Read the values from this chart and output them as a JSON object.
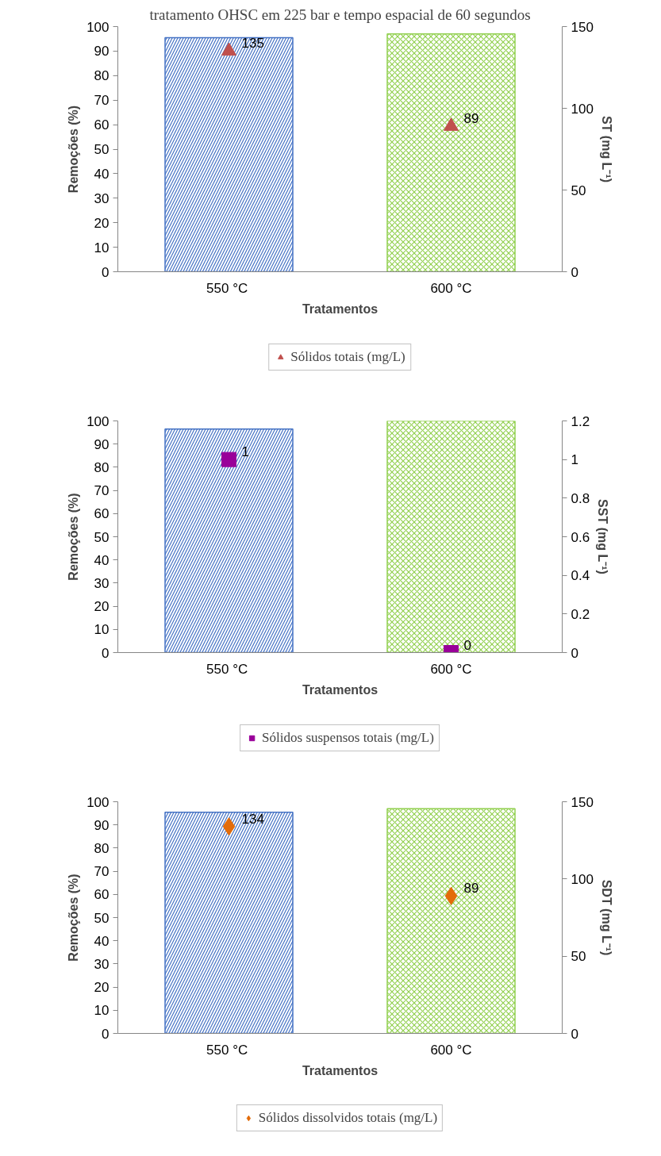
{
  "chart_data": [
    {
      "type": "bar",
      "title": "tratamento OHSC em 225 bar e tempo espacial de 60 segundos",
      "categories": [
        "550  °C",
        "600 °C"
      ],
      "xlabel": "Tratamentos",
      "ylabel": "Remoções (%)",
      "y2label": "ST (mg L⁻¹)",
      "ylim": [
        0,
        100
      ],
      "yticks": [
        0,
        10,
        20,
        30,
        40,
        50,
        60,
        70,
        80,
        90,
        100
      ],
      "y2lim": [
        0,
        150
      ],
      "y2ticks": [
        0,
        50,
        100,
        150
      ],
      "grid": false,
      "legend": "bottom",
      "series": [
        {
          "type": "bar",
          "colors": [
            "#4472c4",
            "#92d050"
          ],
          "values": [
            95.5,
            97
          ]
        },
        {
          "type": "scatter",
          "name": "Sólidos totais (mg/L)",
          "color": "#c0504d",
          "marker": "triangle",
          "axis": "y2",
          "x": [
            "550  °C",
            "600 °C"
          ],
          "values": [
            135,
            89
          ],
          "value_labels": [
            "135",
            "89"
          ]
        }
      ]
    },
    {
      "type": "bar",
      "categories": [
        "550  °C",
        "600 °C"
      ],
      "xlabel": "Tratamentos",
      "ylabel": "Remoções (%)",
      "y2label": "SST (mg L⁻¹)",
      "ylim": [
        0,
        100
      ],
      "yticks": [
        0,
        10,
        20,
        30,
        40,
        50,
        60,
        70,
        80,
        90,
        100
      ],
      "y2lim": [
        0,
        1.2
      ],
      "y2ticks": [
        0,
        0.2,
        0.4,
        0.6,
        0.8,
        1,
        1.2
      ],
      "grid": false,
      "legend": "bottom",
      "series": [
        {
          "type": "bar",
          "colors": [
            "#4472c4",
            "#92d050"
          ],
          "values": [
            96.5,
            100
          ]
        },
        {
          "type": "scatter",
          "name": "Sólidos suspensos totais (mg/L)",
          "color": "#990099",
          "marker": "square",
          "axis": "y2",
          "x": [
            "550  °C",
            "600 °C"
          ],
          "values": [
            1,
            0
          ],
          "value_labels": [
            "1",
            "0"
          ]
        }
      ]
    },
    {
      "type": "bar",
      "categories": [
        "550  °C",
        "600 °C"
      ],
      "xlabel": "Tratamentos",
      "ylabel": "Remoções (%)",
      "y2label": "SDT (mg L⁻¹)",
      "ylim": [
        0,
        100
      ],
      "yticks": [
        0,
        10,
        20,
        30,
        40,
        50,
        60,
        70,
        80,
        90,
        100
      ],
      "y2lim": [
        0,
        150
      ],
      "y2ticks": [
        0,
        50,
        100,
        150
      ],
      "grid": false,
      "legend": "bottom",
      "series": [
        {
          "type": "bar",
          "colors": [
            "#4472c4",
            "#92d050"
          ],
          "values": [
            95.5,
            97
          ]
        },
        {
          "type": "scatter",
          "name": "Sólidos dissolvidos totais (mg/L)",
          "color": "#e36c09",
          "marker": "diamond",
          "axis": "y2",
          "x": [
            "550  °C",
            "600 °C"
          ],
          "values": [
            134,
            89
          ],
          "value_labels": [
            "134",
            "89"
          ]
        }
      ]
    }
  ]
}
